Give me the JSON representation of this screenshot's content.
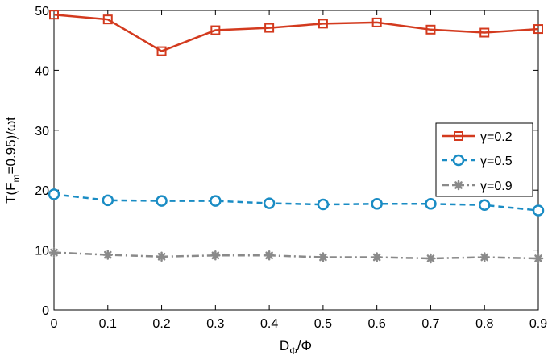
{
  "chart_data": {
    "type": "line",
    "xlabel": {
      "main": "D",
      "sub": "Φ",
      "rest": "/Φ"
    },
    "ylabel": {
      "pre": "T(F",
      "sub": "m",
      "post": "=0.95)/ωt"
    },
    "xlim": [
      0,
      0.9
    ],
    "ylim": [
      0,
      50
    ],
    "xticks": [
      0,
      0.1,
      0.2,
      0.3,
      0.4,
      0.5,
      0.6,
      0.7,
      0.8,
      0.9
    ],
    "yticks": [
      0,
      10,
      20,
      30,
      40,
      50
    ],
    "grid": false,
    "legend_position": "right",
    "x": [
      0,
      0.1,
      0.2,
      0.3,
      0.4,
      0.5,
      0.6,
      0.7,
      0.8,
      0.9
    ],
    "series": [
      {
        "name": "γ=0.2",
        "values": [
          49.3,
          48.5,
          43.2,
          46.7,
          47.1,
          47.8,
          48.0,
          46.8,
          46.3,
          46.9
        ],
        "color": "#d33a1e",
        "marker": "square",
        "dash": "solid"
      },
      {
        "name": "γ=0.5",
        "values": [
          19.3,
          18.3,
          18.2,
          18.2,
          17.8,
          17.6,
          17.7,
          17.7,
          17.5,
          16.6
        ],
        "color": "#1a8cc4",
        "marker": "circle",
        "dash": "dashed"
      },
      {
        "name": "γ=0.9",
        "values": [
          9.6,
          9.2,
          8.9,
          9.1,
          9.1,
          8.8,
          8.8,
          8.6,
          8.8,
          8.6
        ],
        "color": "#8a8a8a",
        "marker": "star",
        "dash": "dashdot"
      }
    ]
  }
}
